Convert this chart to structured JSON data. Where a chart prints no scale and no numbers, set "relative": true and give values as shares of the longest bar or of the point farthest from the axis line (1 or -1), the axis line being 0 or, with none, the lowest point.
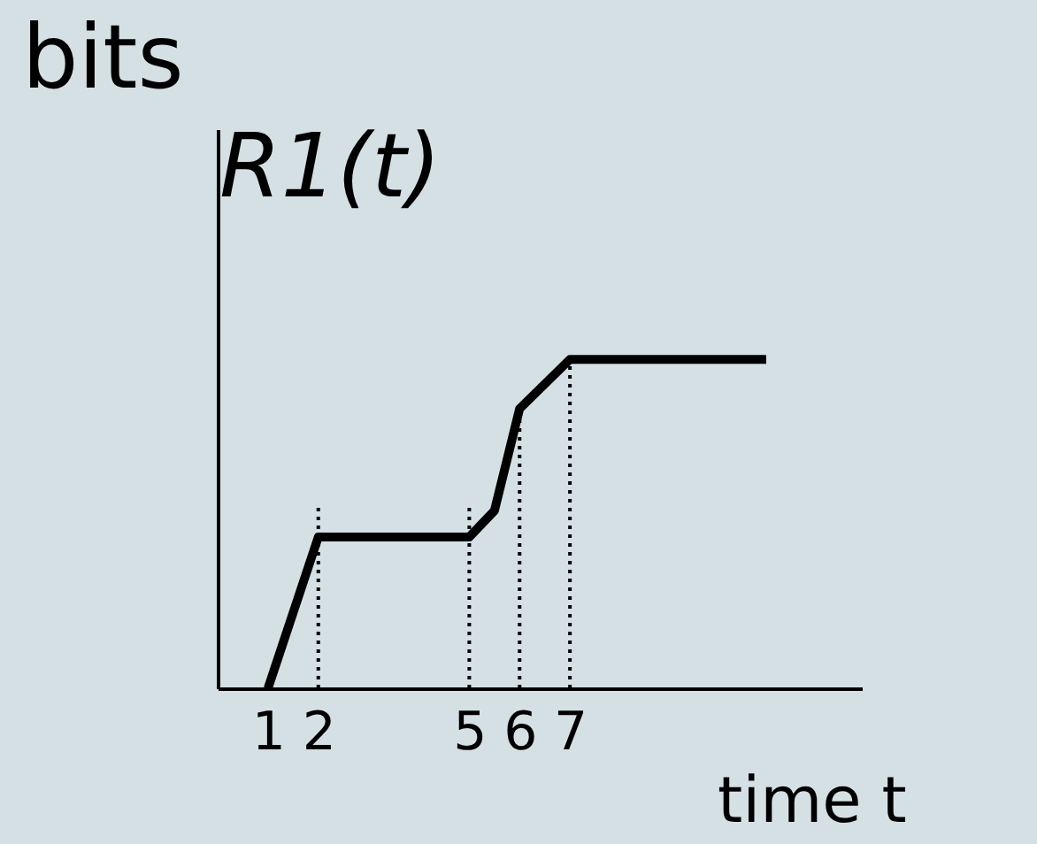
{
  "chart_data": {
    "type": "line",
    "title": "R1(t)",
    "xlabel": "time t",
    "ylabel": "bits",
    "relative": true,
    "x": [
      1,
      2,
      5,
      5.5,
      6,
      7,
      10.9
    ],
    "series": [
      {
        "color": "#000000",
        "values": [
          0,
          0.46,
          0.46,
          0.54,
          0.85,
          1,
          1
        ]
      }
    ],
    "xlim": [
      0,
      12.8
    ],
    "xticks": [
      1,
      2,
      5,
      6,
      7
    ],
    "ref_lines": [
      {
        "axis": "x",
        "value": 2,
        "line_style": "dotted",
        "color": "#000000"
      },
      {
        "axis": "x",
        "value": 5,
        "line_style": "dotted",
        "color": "#000000"
      },
      {
        "axis": "x",
        "value": 6,
        "line_style": "dotted",
        "color": "#000000"
      },
      {
        "axis": "x",
        "value": 7,
        "line_style": "dotted",
        "color": "#000000"
      }
    ],
    "grid": false,
    "marker": "none",
    "line_style": "solid"
  }
}
